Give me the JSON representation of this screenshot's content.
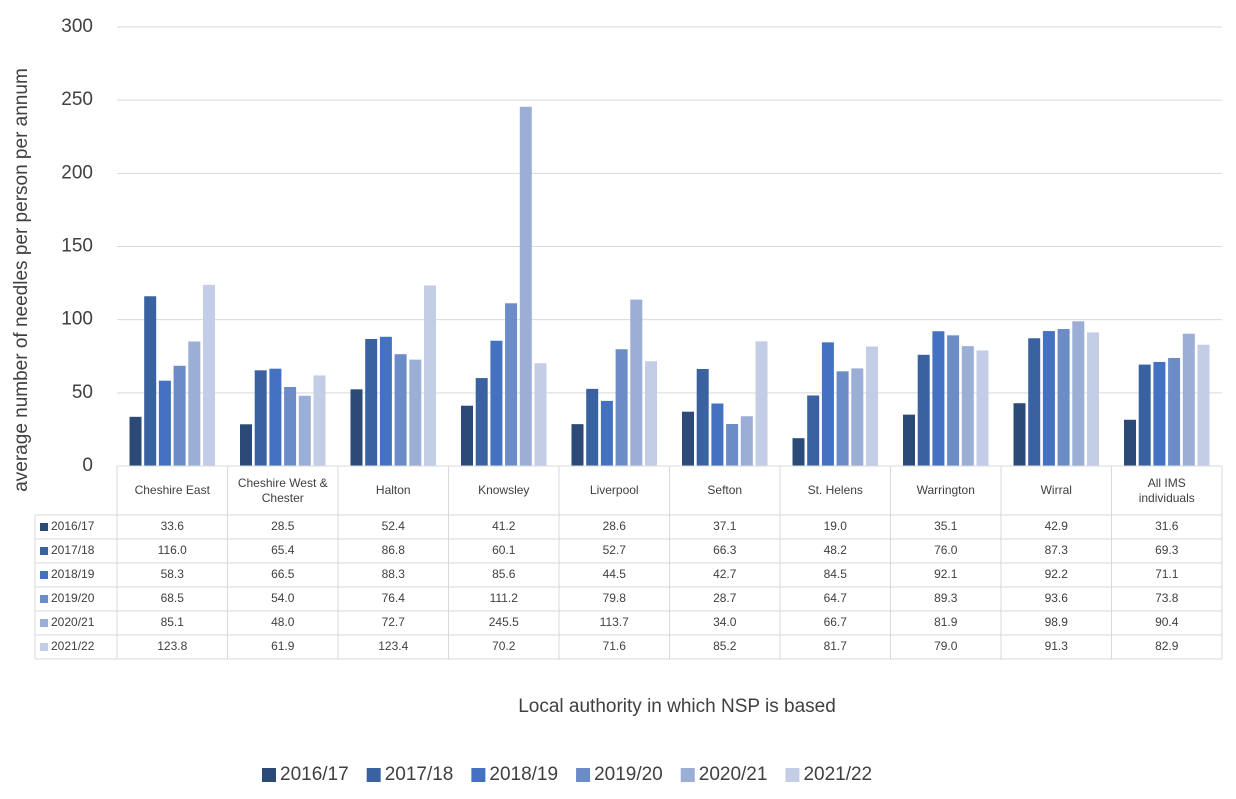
{
  "chart_data": {
    "type": "bar",
    "y_label": "average number of needles per person per annum",
    "x_label": "Local authority in which NSP is based",
    "categories": [
      "Cheshire East",
      "Cheshire West & Chester",
      "Halton",
      "Knowsley",
      "Liverpool",
      "Sefton",
      "St. Helens",
      "Warrington",
      "Wirral",
      "All IMS individuals"
    ],
    "series": [
      {
        "name": "2016/17",
        "color": "#2c4a78",
        "values": [
          33.6,
          28.5,
          52.4,
          41.2,
          28.6,
          37.1,
          19.0,
          35.1,
          42.9,
          31.6
        ],
        "value_labels": [
          "33.6",
          "28.5",
          "52.4",
          "41.2",
          "28.6",
          "37.1",
          "19.0",
          "35.1",
          "42.9",
          "31.6"
        ]
      },
      {
        "name": "2017/18",
        "color": "#3a62a0",
        "values": [
          116.0,
          65.4,
          86.8,
          60.1,
          52.7,
          66.3,
          48.2,
          76.0,
          87.3,
          69.3
        ],
        "value_labels": [
          "116.0",
          "65.4",
          "86.8",
          "60.1",
          "52.7",
          "66.3",
          "48.2",
          "76.0",
          "87.3",
          "69.3"
        ]
      },
      {
        "name": "2018/19",
        "color": "#4472c0",
        "values": [
          58.3,
          66.5,
          88.3,
          85.6,
          44.5,
          42.7,
          84.5,
          92.1,
          92.2,
          71.1
        ],
        "value_labels": [
          "58.3",
          "66.5",
          "88.3",
          "85.6",
          "44.5",
          "42.7",
          "84.5",
          "92.1",
          "92.2",
          "71.1"
        ]
      },
      {
        "name": "2019/20",
        "color": "#6c8cc8",
        "values": [
          68.5,
          54.0,
          76.4,
          111.2,
          79.8,
          28.7,
          64.7,
          89.3,
          93.6,
          73.8
        ],
        "value_labels": [
          "68.5",
          "54.0",
          "76.4",
          "111.2",
          "79.8",
          "28.7",
          "64.7",
          "89.3",
          "93.6",
          "73.8"
        ]
      },
      {
        "name": "2020/21",
        "color": "#9aaed6",
        "values": [
          85.1,
          48.0,
          72.7,
          245.5,
          113.7,
          34.0,
          66.7,
          81.9,
          98.9,
          90.4
        ],
        "value_labels": [
          "85.1",
          "48.0",
          "72.7",
          "245.5",
          "113.7",
          "34.0",
          "66.7",
          "81.9",
          "98.9",
          "90.4"
        ]
      },
      {
        "name": "2021/22",
        "color": "#c3cde6",
        "values": [
          123.8,
          61.9,
          123.4,
          70.2,
          71.6,
          85.2,
          81.7,
          79.0,
          91.3,
          82.9
        ],
        "value_labels": [
          "123.8",
          "61.9",
          "123.4",
          "70.2",
          "71.6",
          "85.2",
          "81.7",
          "79.0",
          "91.3",
          "82.9"
        ]
      }
    ],
    "ylim": [
      0,
      300
    ],
    "yticks": [
      0,
      50,
      100,
      150,
      200,
      250,
      300
    ],
    "grid": true
  }
}
